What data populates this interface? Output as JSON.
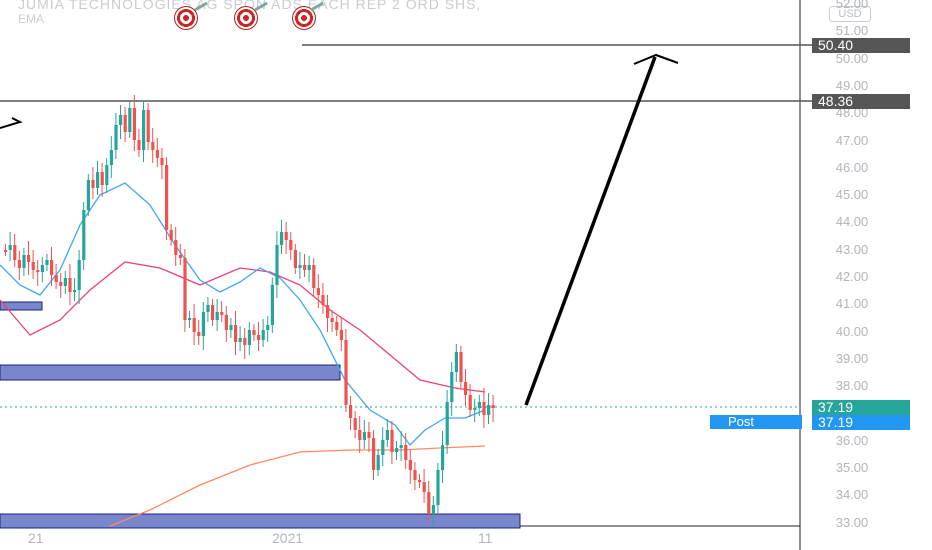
{
  "header": {
    "symbol_title": "JUMIA TECHNOLOGIES AG SPON ADS EACH REP 2 ORD SHS,",
    "indicator": "EMA",
    "currency": "USD"
  },
  "price_axis": {
    "labels": [
      "52.00",
      "51.00",
      "50.00",
      "49.00",
      "48.00",
      "47.00",
      "46.00",
      "45.00",
      "44.00",
      "43.00",
      "42.00",
      "41.00",
      "40.00",
      "39.00",
      "38.00",
      "37.00",
      "36.00",
      "35.00",
      "34.00",
      "33.00"
    ]
  },
  "time_axis": {
    "labels": [
      "21",
      "2021",
      "11"
    ]
  },
  "price_tags": {
    "level_high": "50.40",
    "level_mid": "48.36",
    "last_price": "37.19",
    "post_label": "Post",
    "post_price": "37.19"
  },
  "colors": {
    "up": "#26a69a",
    "down": "#ef5350",
    "ema_fast": "#42a5f5",
    "ema_slow": "#ec407a",
    "ema_long": "#ff8a65",
    "zone": "#7986cb",
    "last_tag": "#26a69a",
    "post_tag": "#2196f3",
    "level_tag": "#555555"
  }
}
